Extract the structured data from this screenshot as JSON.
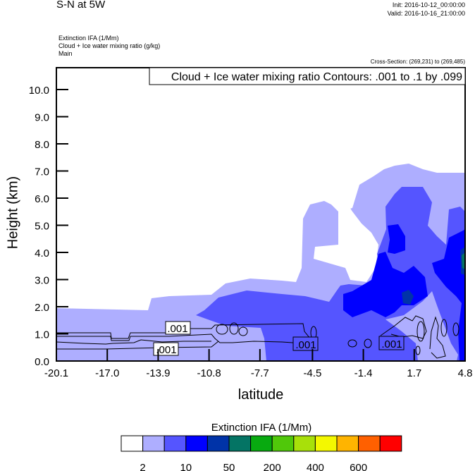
{
  "header": {
    "title": "S-N at 5W",
    "init": "Init: 2016-10-12_00:00:00",
    "valid": "Valid: 2016-10-16_21:00:00",
    "subtitles": [
      "Extinction IFA   (1/Mm)",
      "Cloud + Ice water mixing ratio   (g/kg)",
      "Main"
    ],
    "cross_section": "Cross-Section: (269,231) to (269,485)"
  },
  "chart_data": {
    "type": "heatmap",
    "description_type": "filled contour cross-section with line contours",
    "title": "Cloud + Ice water mixing ratio Contours: .001 to .1 by .099",
    "xlabel": "latitude",
    "ylabel": "Height (km)",
    "xlim": [
      -20.1,
      4.8
    ],
    "ylim": [
      0,
      10.8
    ],
    "xticks": [
      -20.1,
      -17.0,
      -13.9,
      -10.8,
      -7.7,
      -4.5,
      -1.4,
      1.7,
      4.8
    ],
    "xtick_labels": [
      "-20.1",
      "-17.0",
      "-13.9",
      "-10.8",
      "-7.7",
      "-4.5",
      "-1.4",
      "1.7",
      "4.8"
    ],
    "yticks": [
      0,
      1,
      2,
      3,
      4,
      5,
      6,
      7,
      8,
      9,
      10
    ],
    "ytick_labels": [
      "0.0",
      "1.0",
      "2.0",
      "3.0",
      "4.0",
      "5.0",
      "6.0",
      "7.0",
      "8.0",
      "9.0",
      "10.0"
    ],
    "contour_labels": [
      ".001",
      ".001",
      ".001",
      ".001"
    ],
    "grid": false,
    "colorbar": {
      "title": "Extinction IFA  (1/Mm)",
      "colors": [
        "#ffffff",
        "#aeaeff",
        "#5555ff",
        "#0000ff",
        "#0033a8",
        "#047464",
        "#08aa10",
        "#50c80a",
        "#a8e00a",
        "#f4f800",
        "#ffb400",
        "#ff6000",
        "#ff0000"
      ],
      "labels": [
        "2",
        "10",
        "50",
        "200",
        "400",
        "600"
      ],
      "label_boundaries": [
        1,
        3,
        5,
        7,
        9,
        11
      ]
    }
  }
}
